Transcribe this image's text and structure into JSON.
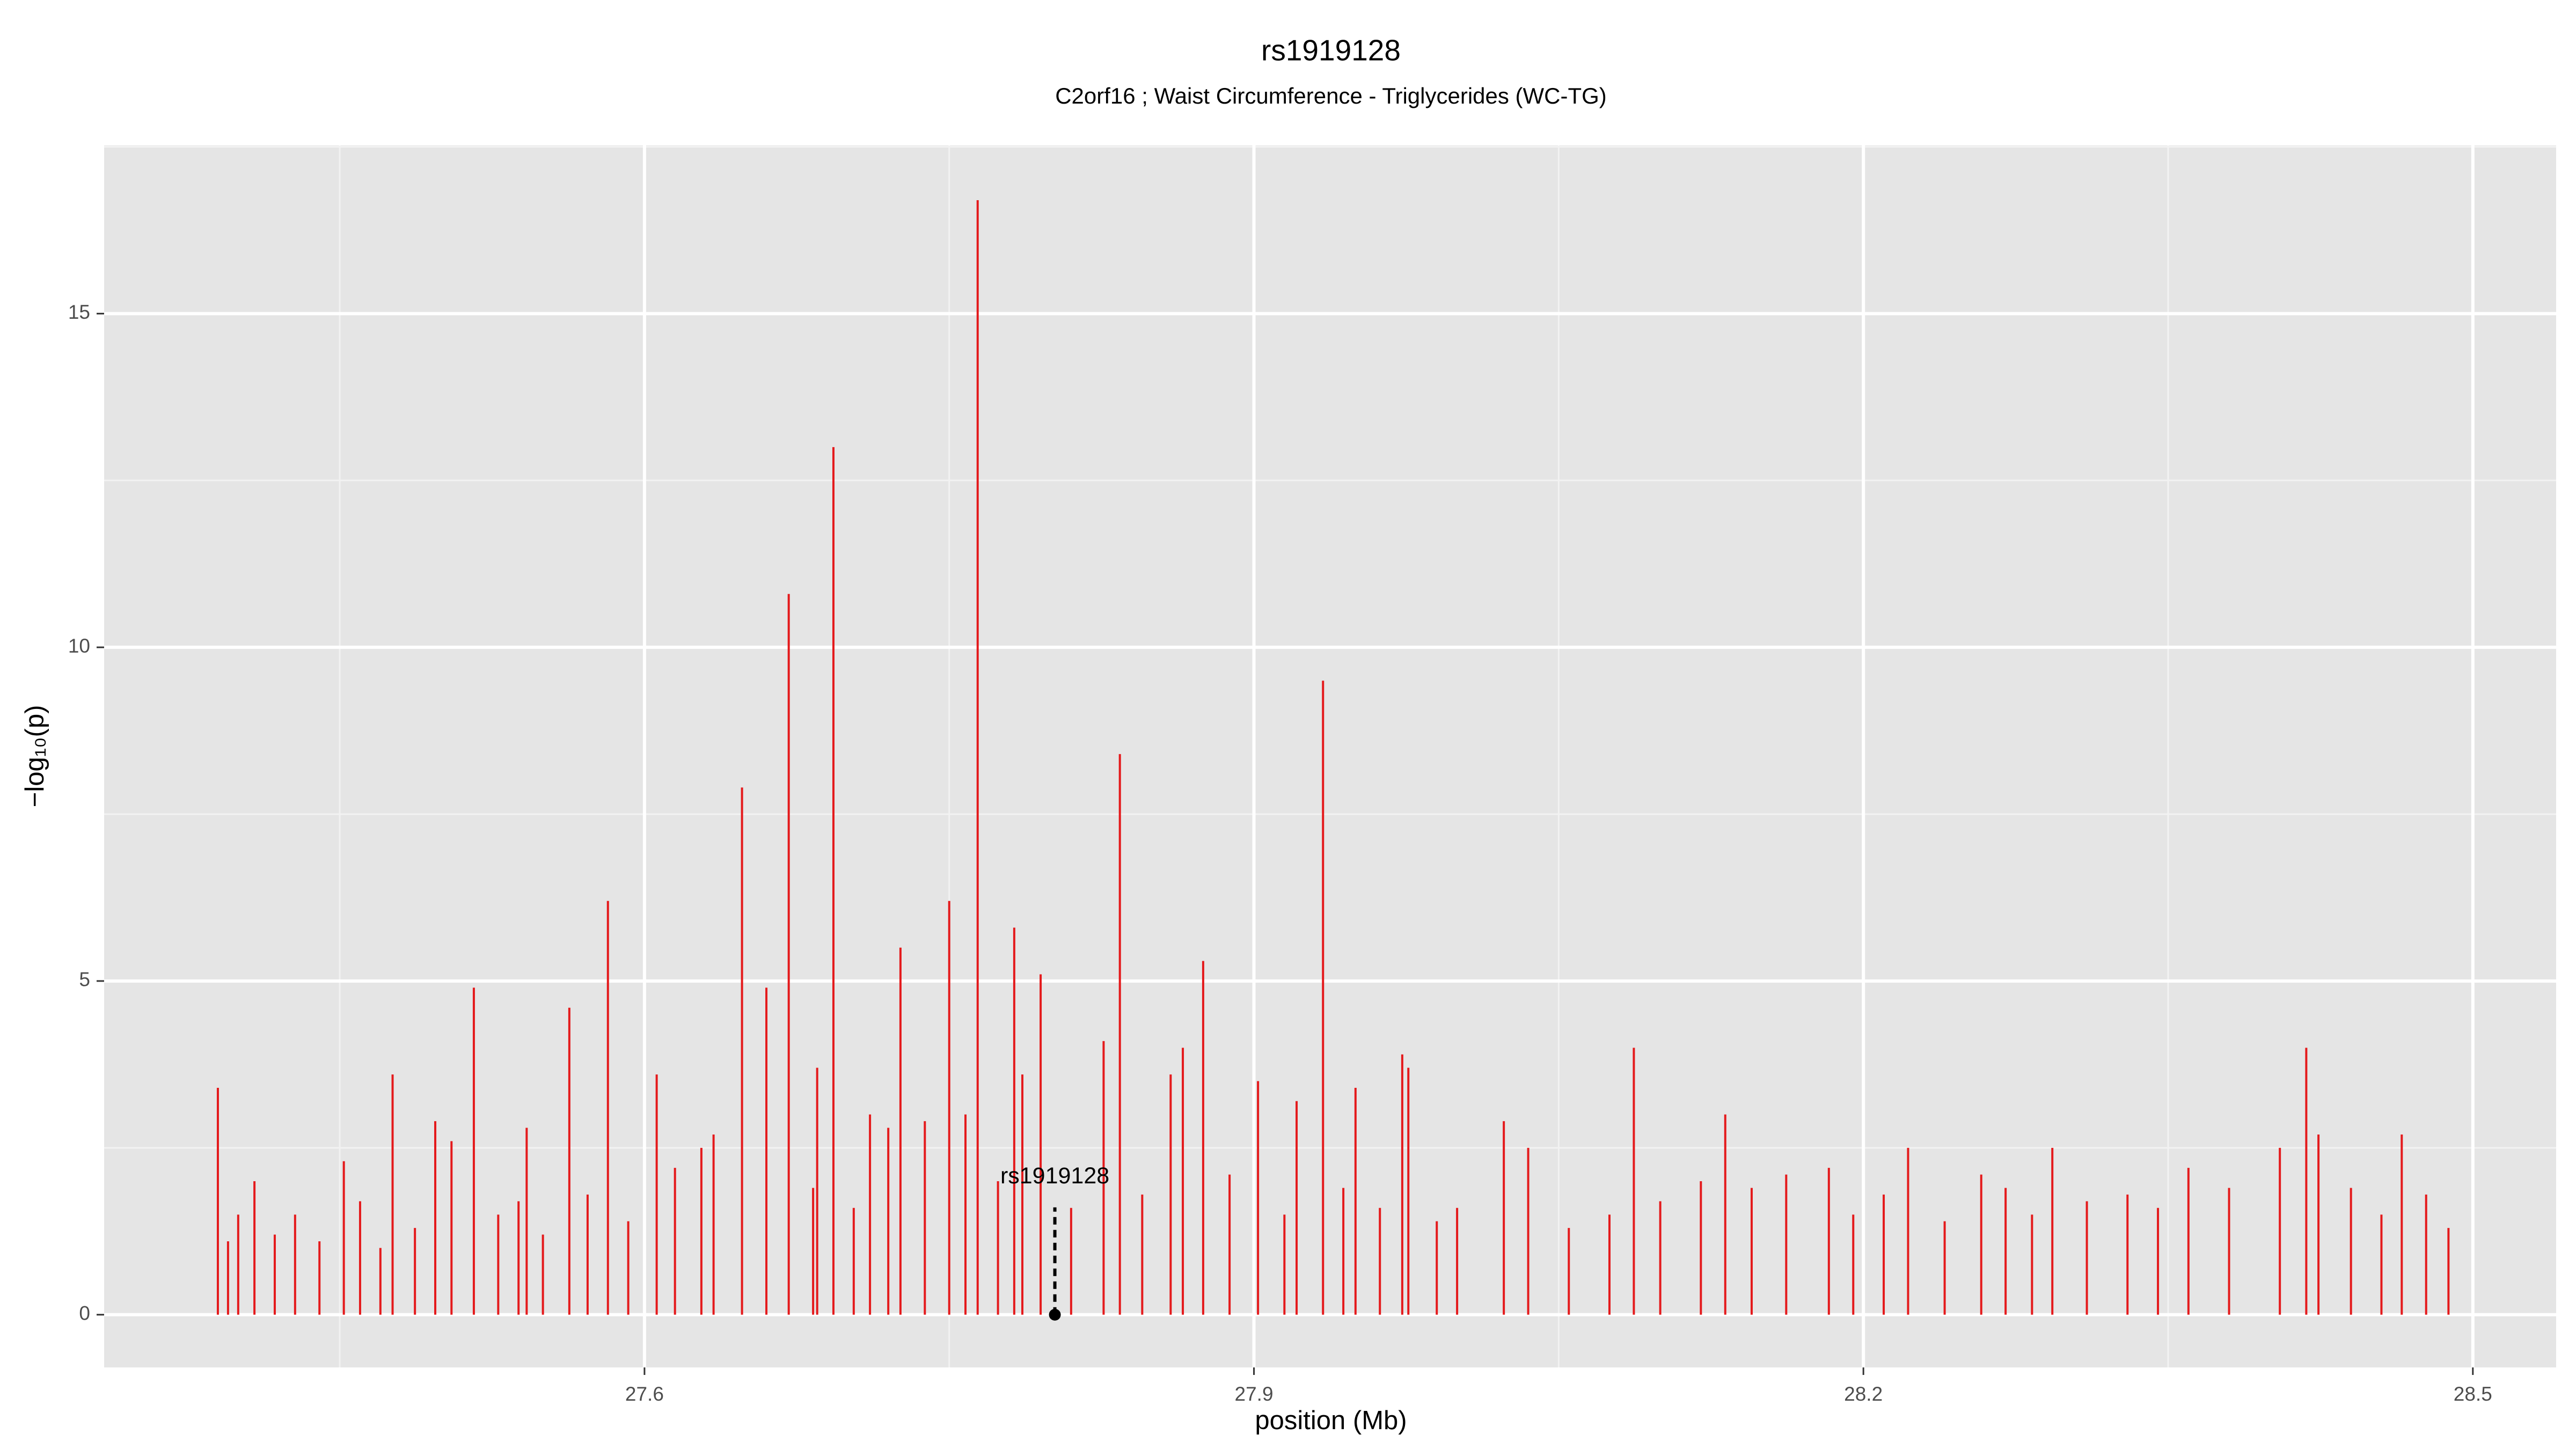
{
  "chart_data": {
    "type": "spike",
    "title": "rs1919128",
    "subtitle": "C2orf16 ; Waist Circumference - Triglycerides (WC-TG)",
    "x_label": "position (Mb)",
    "y_label": "−log₁₀(p)",
    "xlim": [
      27.334,
      28.541
    ],
    "ylim": [
      -0.79,
      17.52
    ],
    "xticks": [
      27.6,
      27.9,
      28.2,
      28.5
    ],
    "yticks": [
      0,
      5,
      10,
      15
    ],
    "grid": true,
    "series": [
      {
        "name": "WC-TG",
        "color": "#e41a1c",
        "x": [
          27.39,
          27.395,
          27.4,
          27.408,
          27.418,
          27.428,
          27.44,
          27.452,
          27.46,
          27.47,
          27.476,
          27.487,
          27.497,
          27.505,
          27.516,
          27.528,
          27.538,
          27.542,
          27.55,
          27.563,
          27.572,
          27.582,
          27.592,
          27.606,
          27.615,
          27.628,
          27.634,
          27.648,
          27.66,
          27.671,
          27.683,
          27.685,
          27.693,
          27.703,
          27.711,
          27.72,
          27.726,
          27.738,
          27.75,
          27.758,
          27.764,
          27.774,
          27.782,
          27.786,
          27.795,
          27.81,
          27.826,
          27.834,
          27.845,
          27.859,
          27.865,
          27.875,
          27.888,
          27.902,
          27.915,
          27.921,
          27.934,
          27.944,
          27.95,
          27.962,
          27.973,
          27.976,
          27.99,
          28.0,
          28.023,
          28.035,
          28.055,
          28.075,
          28.087,
          28.1,
          28.12,
          28.132,
          28.145,
          28.162,
          28.183,
          28.195,
          28.21,
          28.222,
          28.24,
          28.258,
          28.27,
          28.283,
          28.293,
          28.31,
          28.33,
          28.345,
          28.36,
          28.38,
          28.405,
          28.418,
          28.424,
          28.44,
          28.455,
          28.465,
          28.477,
          28.488
        ],
        "values": [
          3.4,
          1.1,
          1.5,
          2.0,
          1.2,
          1.5,
          1.1,
          2.3,
          1.7,
          1.0,
          3.6,
          1.3,
          2.9,
          2.6,
          4.9,
          1.5,
          1.7,
          2.8,
          1.2,
          4.6,
          1.8,
          6.2,
          1.4,
          3.6,
          2.2,
          2.5,
          2.7,
          7.9,
          4.9,
          10.8,
          1.9,
          3.7,
          13.0,
          1.6,
          3.0,
          2.8,
          5.5,
          2.9,
          6.2,
          3.0,
          16.7,
          2.0,
          5.8,
          3.6,
          5.1,
          1.6,
          4.1,
          8.4,
          1.8,
          3.6,
          4.0,
          5.3,
          2.1,
          3.5,
          1.5,
          3.2,
          9.5,
          1.9,
          3.4,
          1.6,
          3.9,
          3.7,
          1.4,
          1.6,
          2.9,
          2.5,
          1.3,
          1.5,
          4.0,
          1.7,
          2.0,
          3.0,
          1.9,
          2.1,
          2.2,
          1.5,
          1.8,
          2.5,
          1.4,
          2.1,
          1.9,
          1.5,
          2.5,
          1.7,
          1.8,
          1.6,
          2.2,
          1.9,
          2.5,
          4.0,
          2.7,
          1.9,
          1.5,
          2.7,
          1.8,
          1.3
        ]
      }
    ],
    "annotations": [
      {
        "text": "rs1919128",
        "x": 27.802,
        "y": 0
      }
    ]
  }
}
